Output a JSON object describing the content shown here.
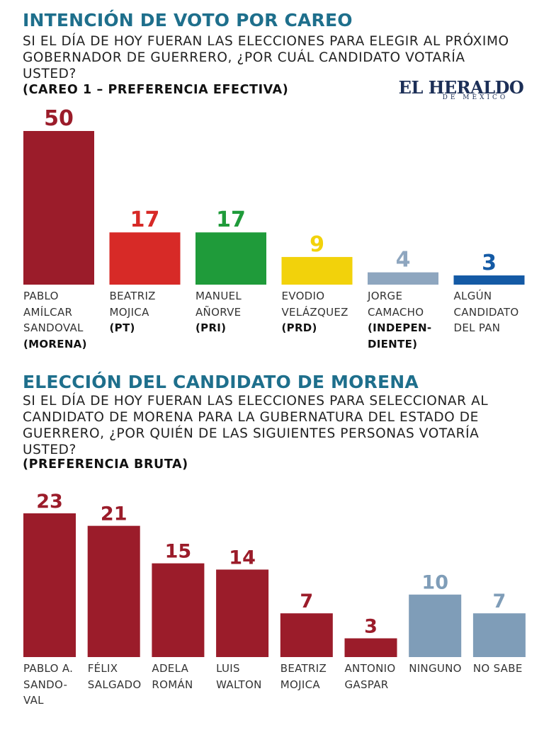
{
  "charts": [
    {
      "title": "INTENCIÓN DE VOTO POR CAREO",
      "question": "SI EL DÍA DE HOY FUERAN LAS ELECCIONES PARA ELEGIR AL PRÓXIMO GOBERNADOR DE GUERRERO, ¿POR CUÁL CANDIDATO VOTARÍA USTED?",
      "note": "(CAREO 1 – PREFERENCIA EFECTIVA)"
    },
    {
      "title": "ELECCIÓN DEL CANDIDATO DE MORENA",
      "question": "SI EL DÍA DE HOY FUERAN LAS ELECCIONES PARA SELECCIONAR AL CANDIDATO DE MORENA PARA LA GUBERNATURA DEL ESTADO DE GUERRERO, ¿POR QUIÉN DE LAS SIGUIENTES PERSONAS VOTARÍA USTED?",
      "note": "(PREFERENCIA BRUTA)"
    }
  ],
  "logo": {
    "main": "EL HERALDO",
    "sub": "DE MÉXICO"
  },
  "chart_data": [
    {
      "type": "bar",
      "title": "INTENCIÓN DE VOTO POR CAREO",
      "xlabel": "",
      "ylabel": "",
      "ylim": [
        0,
        50
      ],
      "grid": false,
      "categories": [
        {
          "lines": [
            "PABLO",
            "AMÍLCAR",
            "SANDOVAL"
          ],
          "sub": [
            "(MORENA)"
          ]
        },
        {
          "lines": [
            "BEATRIZ",
            "MOJICA"
          ],
          "sub": [
            "(PT)"
          ]
        },
        {
          "lines": [
            "MANUEL",
            "AÑORVE"
          ],
          "sub": [
            "(PRI)"
          ]
        },
        {
          "lines": [
            "EVODIO",
            "VELÁZQUEZ"
          ],
          "sub": [
            "(PRD)"
          ]
        },
        {
          "lines": [
            "JORGE",
            "CAMACHO"
          ],
          "sub": [
            "(INDEPEN-",
            "DIENTE)"
          ]
        },
        {
          "lines": [
            "ALGÚN",
            "CANDIDATO",
            "DEL PAN"
          ],
          "sub": []
        }
      ],
      "values": [
        50,
        17,
        17,
        9,
        4,
        3
      ],
      "colors": [
        "#9b1c2a",
        "#d72a27",
        "#1f9b3a",
        "#f2d20b",
        "#8ea6bf",
        "#145aa5"
      ]
    },
    {
      "type": "bar",
      "title": "ELECCIÓN DEL CANDIDATO DE MORENA",
      "xlabel": "",
      "ylabel": "",
      "ylim": [
        0,
        23
      ],
      "grid": false,
      "categories": [
        {
          "lines": [
            "PABLO A.",
            "SANDO-",
            "VAL"
          ],
          "sub": []
        },
        {
          "lines": [
            "FÉLIX",
            "SALGADO"
          ],
          "sub": []
        },
        {
          "lines": [
            "ADELA",
            "ROMÁN"
          ],
          "sub": []
        },
        {
          "lines": [
            "LUIS",
            "WALTON"
          ],
          "sub": []
        },
        {
          "lines": [
            "BEATRIZ",
            "MOJICA"
          ],
          "sub": []
        },
        {
          "lines": [
            "ANTONIO",
            "GASPAR"
          ],
          "sub": []
        },
        {
          "lines": [
            "NINGUNO"
          ],
          "sub": []
        },
        {
          "lines": [
            "NO SABE"
          ],
          "sub": []
        }
      ],
      "values": [
        23,
        21,
        15,
        14,
        7,
        3,
        10,
        7
      ],
      "colors": [
        "#9b1c2a",
        "#9b1c2a",
        "#9b1c2a",
        "#9b1c2a",
        "#9b1c2a",
        "#9b1c2a",
        "#7f9db8",
        "#7f9db8"
      ]
    }
  ]
}
